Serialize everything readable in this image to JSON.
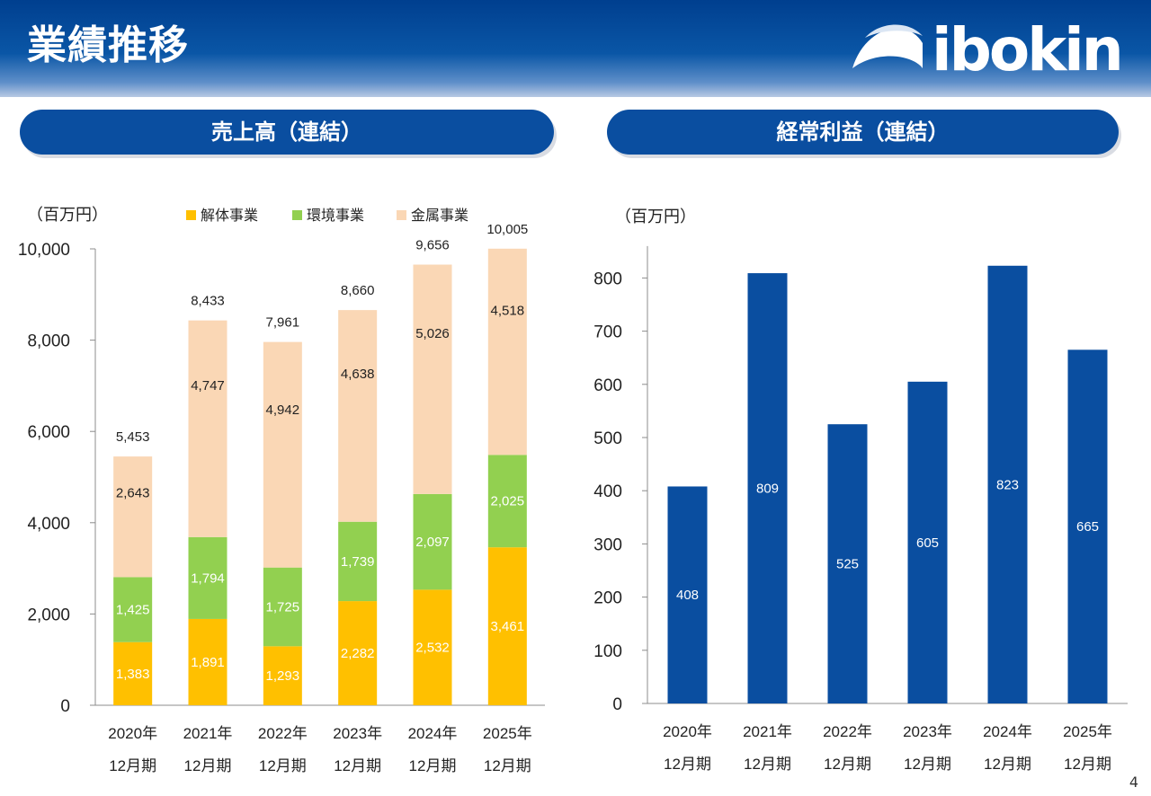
{
  "page": {
    "title": "業績推移",
    "logo_text": "ibokin",
    "page_number": "4"
  },
  "colors": {
    "brand_blue": "#0a4ea0",
    "demolition": "#ffc000",
    "environment": "#92d050",
    "metal": "#fad7b5",
    "profit_bar": "#0a4ea0"
  },
  "chart_data": [
    {
      "type": "bar",
      "stacked": true,
      "title": "売上高（連結）",
      "unit_label": "（百万円）",
      "categories": [
        "2020年",
        "2021年",
        "2022年",
        "2023年",
        "2024年",
        "2025年"
      ],
      "category_sublabels": [
        "12月期",
        "12月期",
        "12月期",
        "12月期",
        "12月期",
        "12月期"
      ],
      "series": [
        {
          "name": "解体事業",
          "color": "#ffc000",
          "values": [
            1383,
            1891,
            1293,
            2282,
            2532,
            3461
          ],
          "labels": [
            "1,383",
            "1,891",
            "1,293",
            "2,282",
            "2,532",
            "3,461"
          ]
        },
        {
          "name": "環境事業",
          "color": "#92d050",
          "values": [
            1425,
            1794,
            1725,
            1739,
            2097,
            2025
          ],
          "labels": [
            "1,425",
            "1,794",
            "1,725",
            "1,739",
            "2,097",
            "2,025"
          ]
        },
        {
          "name": "金属事業",
          "color": "#fad7b5",
          "values": [
            2643,
            4747,
            4942,
            4638,
            5026,
            4518
          ],
          "labels": [
            "2,643",
            "4,747",
            "4,942",
            "4,638",
            "5,026",
            "4,518"
          ]
        }
      ],
      "totals": [
        5453,
        8433,
        7961,
        8660,
        9656,
        10005
      ],
      "total_labels": [
        "5,453",
        "8,433",
        "7,961",
        "8,660",
        "9,656",
        "10,005"
      ],
      "yticks": [
        0,
        2000,
        4000,
        6000,
        8000,
        10000
      ],
      "ytick_labels": [
        "0",
        "2,000",
        "4,000",
        "6,000",
        "8,000",
        "10,000"
      ],
      "ylim": [
        0,
        10000
      ],
      "legend": "top"
    },
    {
      "type": "bar",
      "stacked": false,
      "title": "経常利益（連結）",
      "unit_label": "（百万円）",
      "categories": [
        "2020年",
        "2021年",
        "2022年",
        "2023年",
        "2024年",
        "2025年"
      ],
      "category_sublabels": [
        "12月期",
        "12月期",
        "12月期",
        "12月期",
        "12月期",
        "12月期"
      ],
      "series": [
        {
          "name": "経常利益",
          "color": "#0a4ea0",
          "values": [
            408,
            809,
            525,
            605,
            823,
            665
          ],
          "labels": [
            "408",
            "809",
            "525",
            "605",
            "823",
            "665"
          ]
        }
      ],
      "yticks": [
        0,
        100,
        200,
        300,
        400,
        500,
        600,
        700,
        800
      ],
      "ytick_labels": [
        "0",
        "100",
        "200",
        "300",
        "400",
        "500",
        "600",
        "700",
        "800"
      ],
      "ylim": [
        0,
        860
      ]
    }
  ]
}
